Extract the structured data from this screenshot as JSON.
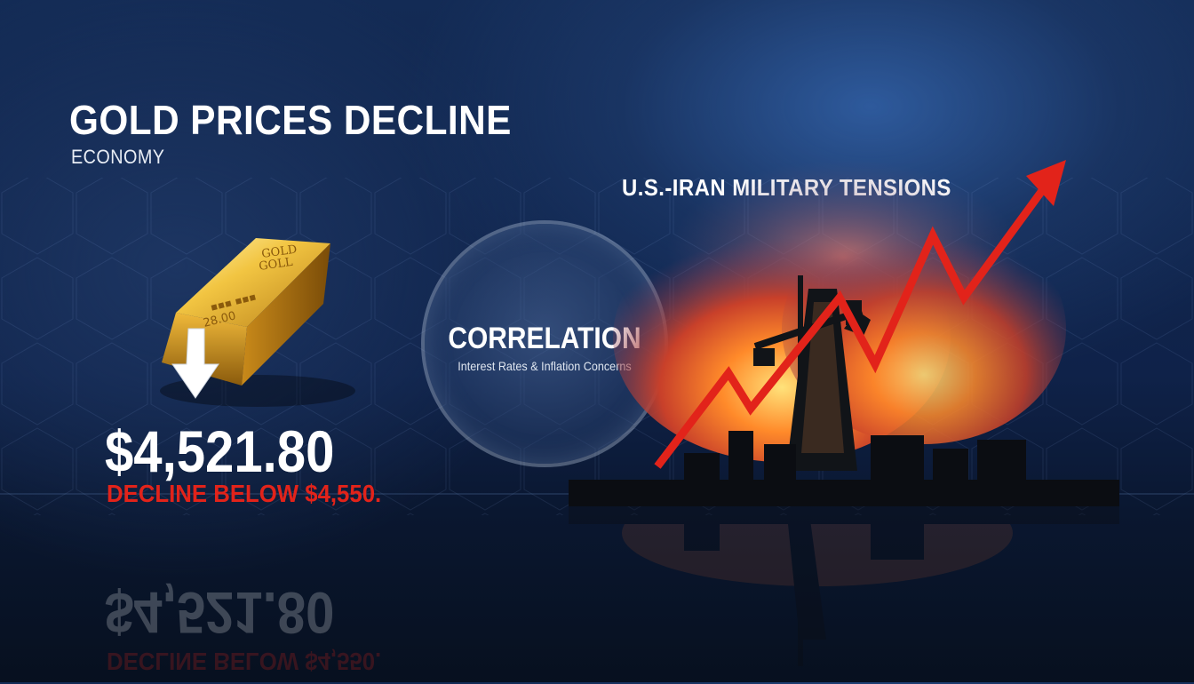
{
  "headline": {
    "title": "GOLD PRICES DECLINE",
    "category": "ECONOMY"
  },
  "gold_bar": {
    "engraving_line1": "GOLD",
    "engraving_line2": "GOLL",
    "engraving_line3": "28.00",
    "arrow_direction": "down"
  },
  "price": {
    "value": "$4,521.80",
    "note": "DECLINE BELOW $4,550."
  },
  "correlation": {
    "title": "CORRELATION",
    "subtitle": "Interest Rates & Inflation Concerns"
  },
  "tension": {
    "label": "U.S.-IRAN MILITARY TENSIONS",
    "trend": "up"
  },
  "colors": {
    "background": "#0f2249",
    "headline": "#ffffff",
    "decline_red": "#e2231a",
    "gold": "#e0a82a",
    "arrow_red": "#e2231a"
  }
}
